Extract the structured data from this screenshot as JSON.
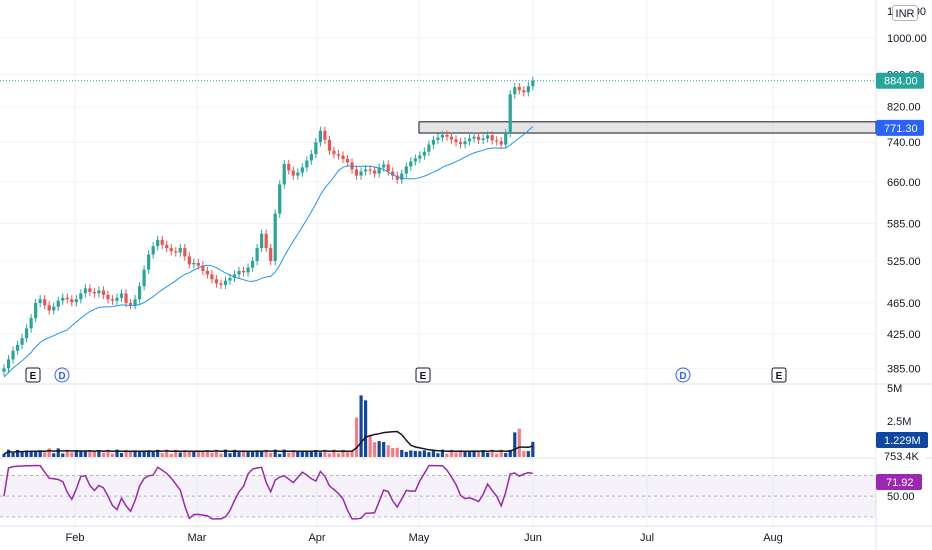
{
  "price_axis": {
    "ticks": [
      "1000.00",
      "900.00",
      "820.00",
      "740.00",
      "660.00",
      "585.00",
      "525.00",
      "465.00",
      "425.00",
      "385.00"
    ],
    "partial_top_label": "1100.00",
    "currency": "INR",
    "last_price": "884.00",
    "level_price": "771.30"
  },
  "volume_axis": {
    "ticks": [
      "5M",
      "2.5M"
    ],
    "volume_last": "1.229M",
    "volume_ma": "753.4K"
  },
  "rsi_axis": {
    "ticks": [
      "50.00"
    ],
    "rsi_last": "71.92"
  },
  "time_axis": {
    "labels": [
      "Feb",
      "Mar",
      "Apr",
      "May",
      "Jun",
      "Jul",
      "Aug"
    ]
  },
  "events": [
    {
      "type": "E",
      "month": "Jan"
    },
    {
      "type": "D",
      "month": "Jan"
    },
    {
      "type": "E",
      "month": "May"
    },
    {
      "type": "D",
      "month": "Jul"
    },
    {
      "type": "E",
      "month": "Aug"
    }
  ],
  "colors": {
    "up": "#26a69a",
    "down": "#ef5350",
    "ma": "#2196f3",
    "rsi": "#9c27b0",
    "volume_up": "#0d47a1",
    "volume_down": "#f77c80",
    "last_price_tag": "#26a69a",
    "level_tag": "#2962ff",
    "event_E": "#131722",
    "event_D": "#2962ff"
  },
  "chart_data": {
    "type": "candlestick",
    "price_scale": "log",
    "price_range": [
      370,
      1110
    ],
    "close_path": [
      [
        385,
        395,
        405,
        412,
        420,
        432,
        445,
        465,
        470,
        462,
        455,
        460,
        468,
        472,
        470,
        466,
        470,
        478,
        485,
        480,
        478,
        482,
        476,
        470,
        468,
        472,
        478,
        465,
        462,
        470
      ],
      [
        488,
        512,
        535,
        548,
        558,
        550,
        545,
        540,
        538,
        545,
        532,
        520,
        522,
        518,
        510,
        505,
        498,
        492,
        490,
        496,
        500,
        505,
        510,
        508,
        515,
        525,
        545,
        568,
        545,
        525
      ],
      [
        602,
        655,
        695,
        682,
        672,
        678,
        688,
        702,
        715,
        740,
        765,
        745,
        722,
        715,
        712,
        705,
        698,
        684,
        672,
        680,
        684,
        682,
        676,
        688,
        694,
        680,
        672,
        664,
        676,
        690
      ],
      [
        700,
        706,
        712,
        720,
        735,
        745,
        750,
        756,
        752,
        746,
        740,
        736,
        742,
        748,
        752,
        745,
        748,
        755,
        744,
        742,
        735,
        760,
        850,
        868,
        860,
        855,
        870,
        884
      ]
    ],
    "volume_spikes_m": [
      0.2,
      0.4,
      0.6,
      5.0,
      4.6,
      1.8,
      1.2,
      0.9,
      2.0,
      1.6,
      1.0,
      2.3,
      1.229
    ],
    "rsi_baseline": 50,
    "rsi_last": 71.92,
    "level": 771.3,
    "last_price": 884
  }
}
